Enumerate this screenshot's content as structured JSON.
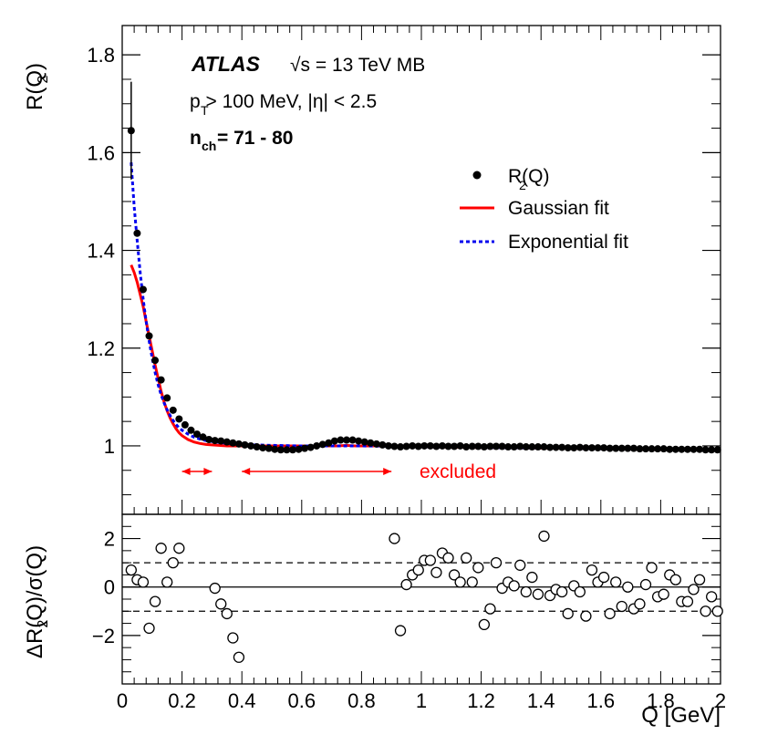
{
  "chart_data": [
    {
      "type": "scatter",
      "panel": "upper",
      "ylabel": "R(Q)",
      "ylabel_sub": "2",
      "xlim": [
        0,
        2
      ],
      "ylim": [
        0.86,
        1.86
      ],
      "yticks": [
        1,
        1.2,
        1.4,
        1.6,
        1.8
      ],
      "ytick_labels": [
        "1",
        "1.2",
        "1.4",
        "1.6",
        "1.8"
      ],
      "annotations": {
        "experiment": "ATLAS",
        "energy": "√s = 13 TeV MB",
        "cuts": "p > 100 MeV, |η| < 2.5",
        "cuts_sub": "T",
        "nch_label": "n",
        "nch_sub": "ch",
        "nch_range": " = 71 - 80",
        "excluded": "excluded"
      },
      "legend": {
        "placement": "top-right",
        "data_label": "R(Q)",
        "data_label_sub": "2",
        "gauss_label": "Gaussian fit",
        "exp_label": "Exponential fit"
      },
      "excluded_ranges": [
        [
          0.2,
          0.3
        ],
        [
          0.4,
          0.9
        ]
      ],
      "series": [
        {
          "name": "R2(Q) data",
          "x": [
            0.03,
            0.05,
            0.07,
            0.09,
            0.11,
            0.13,
            0.15,
            0.17,
            0.19,
            0.21,
            0.23,
            0.25,
            0.27,
            0.29,
            0.31,
            0.33,
            0.35,
            0.37,
            0.39,
            0.41,
            0.43,
            0.45,
            0.47,
            0.49,
            0.51,
            0.53,
            0.55,
            0.57,
            0.59,
            0.61,
            0.63,
            0.65,
            0.67,
            0.69,
            0.71,
            0.73,
            0.75,
            0.77,
            0.79,
            0.81,
            0.83,
            0.85,
            0.87,
            0.89,
            0.91,
            0.93,
            0.95,
            0.97,
            0.99,
            1.01,
            1.03,
            1.05,
            1.07,
            1.09,
            1.11,
            1.13,
            1.15,
            1.17,
            1.19,
            1.21,
            1.23,
            1.25,
            1.27,
            1.29,
            1.31,
            1.33,
            1.35,
            1.37,
            1.39,
            1.41,
            1.43,
            1.45,
            1.47,
            1.49,
            1.51,
            1.53,
            1.55,
            1.57,
            1.59,
            1.61,
            1.63,
            1.65,
            1.67,
            1.69,
            1.71,
            1.73,
            1.75,
            1.77,
            1.79,
            1.81,
            1.83,
            1.85,
            1.87,
            1.89,
            1.91,
            1.93,
            1.95,
            1.97,
            1.99
          ],
          "y": [
            1.645,
            1.435,
            1.32,
            1.225,
            1.175,
            1.135,
            1.098,
            1.073,
            1.055,
            1.043,
            1.032,
            1.024,
            1.018,
            1.013,
            1.011,
            1.01,
            1.008,
            1.006,
            1.004,
            1.002,
            1.0,
            0.998,
            0.996,
            0.995,
            0.993,
            0.992,
            0.992,
            0.992,
            0.993,
            0.995,
            0.997,
            1.0,
            1.003,
            1.006,
            1.01,
            1.012,
            1.012,
            1.012,
            1.01,
            1.008,
            1.006,
            1.004,
            1.002,
            1.0,
            0.999,
            0.998,
            0.999,
            1.0,
            0.999,
            1.0,
            1.0,
            0.999,
            1.0,
            0.999,
            0.999,
            1.0,
            0.998,
            0.999,
            0.999,
            0.998,
            0.999,
            0.999,
            0.999,
            0.998,
            0.998,
            0.999,
            0.998,
            0.998,
            0.998,
            0.998,
            0.997,
            0.997,
            0.997,
            0.996,
            0.996,
            0.997,
            0.996,
            0.996,
            0.996,
            0.996,
            0.995,
            0.995,
            0.995,
            0.995,
            0.995,
            0.994,
            0.994,
            0.994,
            0.994,
            0.994,
            0.993,
            0.993,
            0.993,
            0.993,
            0.993,
            0.993,
            0.992,
            0.992,
            0.992
          ],
          "err_at_first_point": [
            1.545,
            1.745
          ]
        },
        {
          "name": "Gaussian fit",
          "color": "#ff0000",
          "x": [
            0.03,
            0.04,
            0.05,
            0.06,
            0.07,
            0.08,
            0.09,
            0.1,
            0.11,
            0.12,
            0.13,
            0.14,
            0.15,
            0.16,
            0.17,
            0.18,
            0.19,
            0.2,
            0.22,
            0.24,
            0.26,
            0.28,
            0.3,
            0.35,
            0.4,
            0.5,
            0.6,
            0.65,
            0.7,
            0.72,
            0.75,
            0.78,
            0.8,
            0.85,
            0.9,
            1.0,
            1.5,
            2.0
          ],
          "y": [
            1.37,
            1.355,
            1.335,
            1.31,
            1.285,
            1.255,
            1.225,
            1.195,
            1.165,
            1.138,
            1.112,
            1.09,
            1.072,
            1.057,
            1.045,
            1.035,
            1.027,
            1.021,
            1.013,
            1.008,
            1.005,
            1.003,
            1.002,
            1.0,
            1.0,
            1.0,
            1.0,
            1.0,
            1.0,
            1.0,
            1.001,
            1.0,
            1.0,
            1.0,
            1.0,
            0.998,
            0.995,
            0.991
          ]
        },
        {
          "name": "Exponential fit",
          "color": "#0000ee",
          "x": [
            0.03,
            0.04,
            0.05,
            0.06,
            0.07,
            0.08,
            0.09,
            0.1,
            0.11,
            0.12,
            0.13,
            0.14,
            0.15,
            0.16,
            0.17,
            0.18,
            0.19,
            0.2,
            0.22,
            0.24,
            0.26,
            0.28,
            0.3,
            0.35,
            0.4,
            0.5,
            0.6,
            0.7,
            0.8,
            0.9,
            1.0,
            1.5,
            2.0
          ],
          "y": [
            1.58,
            1.49,
            1.42,
            1.355,
            1.3,
            1.255,
            1.215,
            1.18,
            1.15,
            1.125,
            1.105,
            1.088,
            1.074,
            1.062,
            1.052,
            1.044,
            1.037,
            1.032,
            1.024,
            1.018,
            1.014,
            1.011,
            1.009,
            1.005,
            1.003,
            1.001,
            1.0,
            1.0,
            1.0,
            0.999,
            0.998,
            0.995,
            0.991
          ]
        }
      ]
    },
    {
      "type": "scatter",
      "panel": "lower",
      "ylabel": "ΔR(Q)/σ(Q)",
      "ylabel_sub": "2",
      "xlabel": "Q [GeV]",
      "xlim": [
        0,
        2
      ],
      "ylim": [
        -4,
        3
      ],
      "yticks": [
        -2,
        0,
        2
      ],
      "ytick_labels": [
        "−2",
        "0",
        "2"
      ],
      "xticks": [
        0,
        0.2,
        0.4,
        0.6,
        0.8,
        1,
        1.2,
        1.4,
        1.6,
        1.8,
        2
      ],
      "xtick_labels": [
        "0",
        "0.2",
        "0.4",
        "0.6",
        "0.8",
        "1",
        "1.2",
        "1.4",
        "1.6",
        "1.8",
        "2"
      ],
      "reference_lines": [
        1,
        0,
        -1
      ],
      "series": [
        {
          "name": "residuals",
          "x": [
            0.03,
            0.05,
            0.07,
            0.09,
            0.11,
            0.13,
            0.15,
            0.17,
            0.19,
            0.31,
            0.33,
            0.35,
            0.37,
            0.39,
            0.91,
            0.93,
            0.95,
            0.97,
            0.99,
            1.01,
            1.03,
            1.05,
            1.07,
            1.09,
            1.11,
            1.13,
            1.15,
            1.17,
            1.19,
            1.21,
            1.23,
            1.25,
            1.27,
            1.29,
            1.31,
            1.33,
            1.35,
            1.37,
            1.39,
            1.41,
            1.43,
            1.45,
            1.47,
            1.49,
            1.51,
            1.53,
            1.55,
            1.57,
            1.59,
            1.61,
            1.63,
            1.65,
            1.67,
            1.69,
            1.71,
            1.73,
            1.75,
            1.77,
            1.79,
            1.81,
            1.83,
            1.85,
            1.87,
            1.89,
            1.91,
            1.93,
            1.95,
            1.97,
            1.99
          ],
          "y": [
            0.7,
            0.3,
            0.2,
            -1.7,
            -0.6,
            1.6,
            0.2,
            1.0,
            1.6,
            -0.05,
            -0.7,
            -1.1,
            -2.1,
            -2.9,
            2.0,
            -1.8,
            0.1,
            0.5,
            0.7,
            1.1,
            1.1,
            0.6,
            1.4,
            1.2,
            0.5,
            0.2,
            1.2,
            0.2,
            0.8,
            -1.55,
            -0.9,
            1.0,
            -0.05,
            0.2,
            0.05,
            0.9,
            -0.2,
            0.4,
            -0.3,
            2.1,
            -0.35,
            -0.1,
            -0.2,
            -1.1,
            0.05,
            -0.2,
            -1.2,
            0.7,
            0.2,
            0.4,
            -1.1,
            0.2,
            -0.8,
            0.0,
            -0.9,
            -0.7,
            0.1,
            0.8,
            -0.4,
            -0.3,
            0.5,
            0.3,
            -0.6,
            -0.6,
            -0.1,
            0.3,
            -1.0,
            -0.4,
            -1.0
          ]
        }
      ]
    }
  ]
}
